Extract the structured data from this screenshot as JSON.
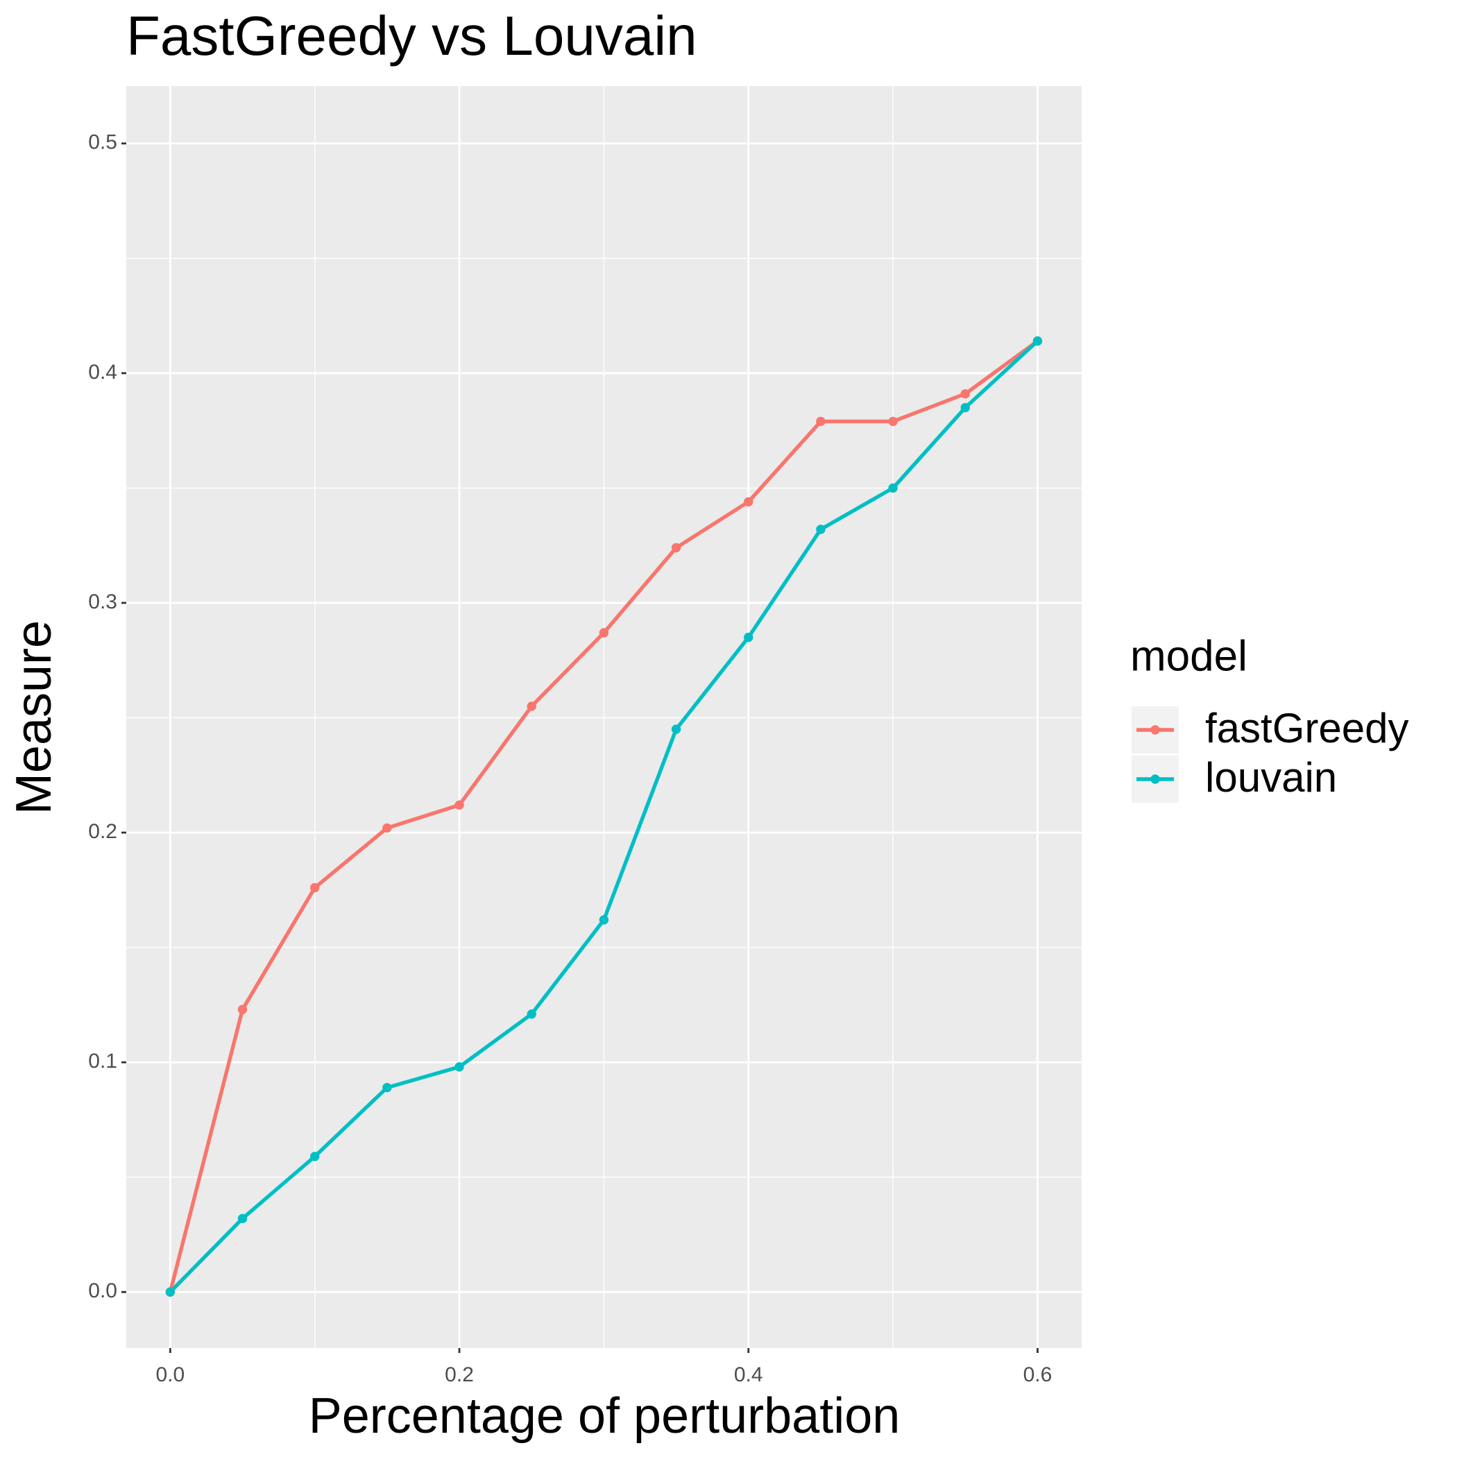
{
  "chart_data": {
    "type": "line",
    "title": "FastGreedy vs Louvain",
    "x_label": "Percentage of perturbation",
    "y_label": "Measure",
    "x": [
      0,
      0.05,
      0.1,
      0.15,
      0.2,
      0.25,
      0.3,
      0.35,
      0.4,
      0.45,
      0.5,
      0.55,
      0.6
    ],
    "series": [
      {
        "name": "fastGreedy",
        "color": "#f8766d",
        "values": [
          0,
          0.123,
          0.176,
          0.202,
          0.212,
          0.255,
          0.287,
          0.324,
          0.344,
          0.379,
          0.379,
          0.391,
          0.414
        ]
      },
      {
        "name": "louvain",
        "color": "#00bfc4",
        "values": [
          0,
          0.032,
          0.059,
          0.089,
          0.098,
          0.121,
          0.162,
          0.245,
          0.285,
          0.332,
          0.35,
          0.385,
          0.414
        ]
      }
    ],
    "legend_title": "model",
    "legend_position": "right",
    "xlim": [
      -0.0304,
      0.6305
    ],
    "ylim": [
      -0.0244,
      0.525
    ],
    "xticks": [
      {
        "value": 0,
        "label": "0.0"
      },
      0.2,
      0.4,
      0.6
    ],
    "yticks": [
      {
        "value": 0,
        "label": "0.0"
      },
      0.1,
      0.2,
      0.3,
      0.4,
      0.5
    ],
    "grid": true
  }
}
